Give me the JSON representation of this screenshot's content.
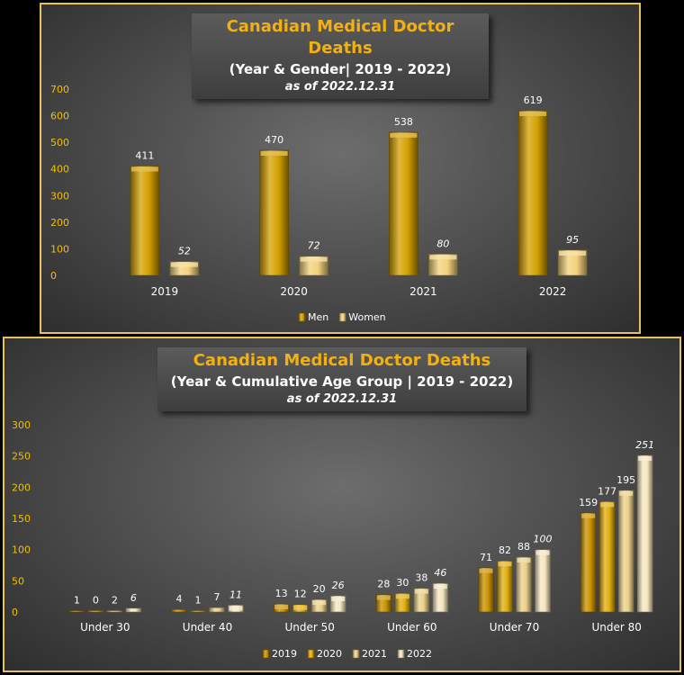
{
  "chart_data": [
    {
      "type": "bar",
      "title": "Canadian Medical Doctor Deaths",
      "subtitle": "(Year & Gender| 2019 - 2022)",
      "note": "as of 2022.12.31",
      "categories": [
        "2019",
        "2020",
        "2021",
        "2022"
      ],
      "series": [
        {
          "name": "Men",
          "values": [
            411,
            470,
            538,
            619
          ],
          "color": "#d4a000"
        },
        {
          "name": "Women",
          "values": [
            52,
            72,
            80,
            95
          ],
          "color": "#f3d27a"
        }
      ],
      "ylim": [
        0,
        700
      ],
      "yticks": [
        0,
        100,
        200,
        300,
        400,
        500,
        600,
        700
      ],
      "legend": "bottom"
    },
    {
      "type": "bar",
      "title": "Canadian Medical Doctor Deaths",
      "subtitle": "(Year & Cumulative Age Group | 2019 - 2022)",
      "note": "as of 2022.12.31",
      "categories": [
        "Under 30",
        "Under 40",
        "Under 50",
        "Under 60",
        "Under 70",
        "Under 80"
      ],
      "series": [
        {
          "name": "2019",
          "values": [
            1,
            4,
            13,
            28,
            71,
            159
          ],
          "color": "#c99200"
        },
        {
          "name": "2020",
          "values": [
            0,
            1,
            12,
            30,
            82,
            177
          ],
          "color": "#e0ae10"
        },
        {
          "name": "2021",
          "values": [
            2,
            7,
            20,
            38,
            88,
            195
          ],
          "color": "#ead08a"
        },
        {
          "name": "2022",
          "values": [
            6,
            11,
            26,
            46,
            100,
            251
          ],
          "color": "#f6e6c0"
        }
      ],
      "ylim": [
        0,
        300
      ],
      "yticks": [
        0,
        50,
        100,
        150,
        200,
        250,
        300
      ],
      "legend": "bottom"
    }
  ]
}
